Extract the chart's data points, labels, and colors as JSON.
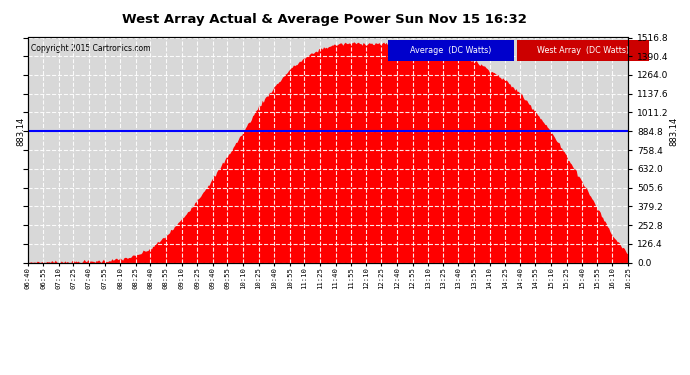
{
  "title": "West Array Actual & Average Power Sun Nov 15 16:32",
  "copyright": "Copyright 2015 Cartronics.com",
  "bg_color": "#ffffff",
  "plot_bg_color": "#d8d8d8",
  "average_value": 883.14,
  "average_line_color": "#0000ff",
  "fill_color": "#ff0000",
  "yticks": [
    0.0,
    126.4,
    252.8,
    379.2,
    505.6,
    632.0,
    758.4,
    884.8,
    1011.2,
    1137.6,
    1264.0,
    1390.4,
    1516.8
  ],
  "ymax": 1516.8,
  "legend_avg_bg": "#0000cc",
  "legend_west_bg": "#cc0000",
  "legend_avg_text": "Average  (DC Watts)",
  "legend_west_text": "West Array  (DC Watts)",
  "left_label": "883.14",
  "right_label": "883.14",
  "grid_color": "#ffffff",
  "tick_times": [
    "06:40",
    "06:55",
    "07:10",
    "07:25",
    "07:40",
    "07:55",
    "08:10",
    "08:25",
    "08:40",
    "08:55",
    "09:10",
    "09:25",
    "09:40",
    "09:55",
    "10:10",
    "10:25",
    "10:40",
    "10:55",
    "11:10",
    "11:25",
    "11:40",
    "11:55",
    "12:10",
    "12:25",
    "12:40",
    "12:55",
    "13:10",
    "13:25",
    "13:40",
    "13:55",
    "14:10",
    "14:25",
    "14:40",
    "14:55",
    "15:10",
    "15:25",
    "15:40",
    "15:55",
    "16:10",
    "16:25"
  ],
  "power_values": [
    2,
    3,
    4,
    5,
    8,
    12,
    22,
    45,
    95,
    180,
    290,
    420,
    560,
    720,
    880,
    1050,
    1180,
    1300,
    1380,
    1440,
    1470,
    1480,
    1478,
    1475,
    1470,
    1460,
    1450,
    1430,
    1400,
    1360,
    1300,
    1230,
    1140,
    1020,
    880,
    720,
    550,
    370,
    180,
    60
  ]
}
